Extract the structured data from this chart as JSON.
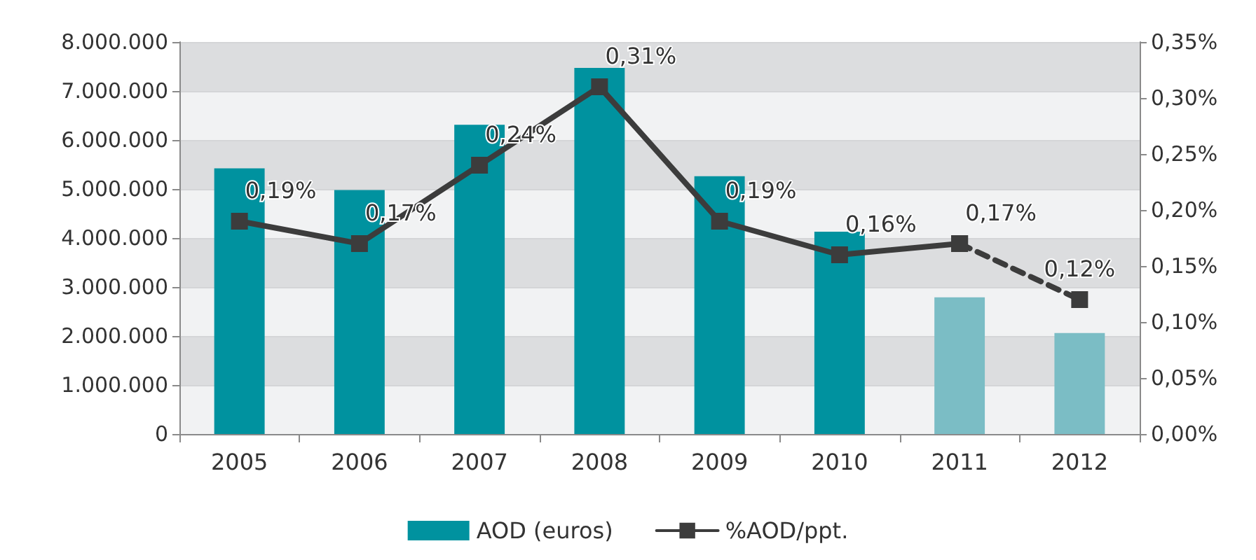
{
  "chart_data": {
    "type": "bar",
    "categories": [
      "2005",
      "2006",
      "2007",
      "2008",
      "2009",
      "2010",
      "2011",
      "2012"
    ],
    "series": [
      {
        "name": "AOD (euros)",
        "colors": [
          "#00929f",
          "#00929f",
          "#00929f",
          "#00929f",
          "#00929f",
          "#00929f",
          "#7bbdc5",
          "#7bbdc5"
        ],
        "values": [
          5420000,
          4980000,
          6310000,
          7470000,
          5260000,
          4130000,
          2790000,
          2060000
        ]
      },
      {
        "name": "%AOD/ppt.",
        "type": "line",
        "axis": "y2",
        "color": "#3c3c3c",
        "marker": "square",
        "line_style": "solid",
        "values": [
          0.19,
          0.17,
          0.24,
          0.31,
          0.19,
          0.16,
          0.17,
          null
        ],
        "value_labels": [
          "0,19%",
          "0,17%",
          "0,24%",
          "0,31%",
          "0,19%",
          "0,16%",
          "0,17%",
          null
        ]
      },
      {
        "type": "line",
        "axis": "y2",
        "color": "#3c3c3c",
        "marker": "square",
        "line_style": "dashed",
        "values": [
          null,
          null,
          null,
          null,
          null,
          null,
          0.17,
          0.12
        ],
        "value_labels": [
          null,
          null,
          null,
          null,
          null,
          null,
          null,
          "0,12%"
        ]
      }
    ],
    "ylim": [
      0,
      8000000
    ],
    "yticks": [
      {
        "value": 0,
        "label": "0"
      },
      {
        "value": 1000000,
        "label": "1.000.000"
      },
      {
        "value": 2000000,
        "label": "2.000.000"
      },
      {
        "value": 3000000,
        "label": "3.000.000"
      },
      {
        "value": 4000000,
        "label": "4.000.000"
      },
      {
        "value": 5000000,
        "label": "5.000.000"
      },
      {
        "value": 6000000,
        "label": "6.000.000"
      },
      {
        "value": 7000000,
        "label": "7.000.000"
      },
      {
        "value": 8000000,
        "label": "8.000.000"
      }
    ],
    "y2lim": [
      0,
      0.35
    ],
    "y2ticks": [
      {
        "value": 0,
        "label": "0,00%"
      },
      {
        "value": 0.05,
        "label": "0,05%"
      },
      {
        "value": 0.1,
        "label": "0,10%"
      },
      {
        "value": 0.15,
        "label": "0,15%"
      },
      {
        "value": 0.2,
        "label": "0,20%"
      },
      {
        "value": 0.25,
        "label": "0,25%"
      },
      {
        "value": 0.3,
        "label": "0,30%"
      },
      {
        "value": 0.35,
        "label": "0,35%"
      }
    ],
    "grid": "y",
    "legend": "bottom"
  }
}
